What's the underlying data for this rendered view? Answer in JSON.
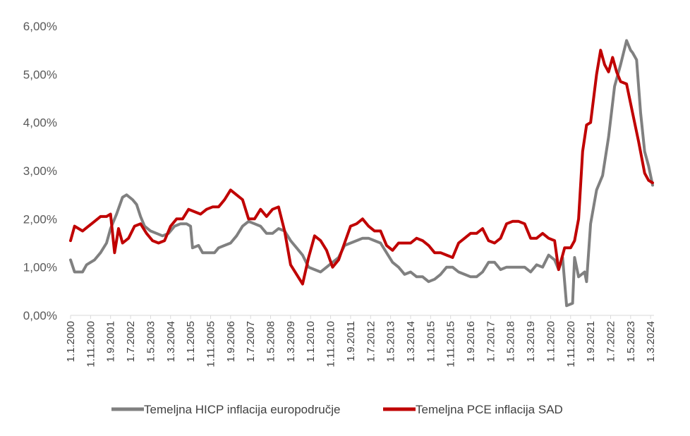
{
  "chart_data": {
    "type": "line",
    "title": "",
    "xlabel": "",
    "ylabel": "",
    "ylim": [
      0,
      0.06
    ],
    "y_ticks": [
      "0,00%",
      "1,00%",
      "2,00%",
      "3,00%",
      "4,00%",
      "5,00%",
      "6,00%"
    ],
    "x_ticks": [
      "1.1.2000",
      "1.11.2000",
      "1.9.2001",
      "1.7.2002",
      "1.5.2003",
      "1.3.2004",
      "1.1.2005",
      "1.11.2005",
      "1.9.2006",
      "1.7.2007",
      "1.5.2008",
      "1.3.2009",
      "1.1.2010",
      "1.11.2010",
      "1.9.2011",
      "1.7.2012",
      "1.5.2013",
      "1.3.2014",
      "1.1.2015",
      "1.11.2015",
      "1.9.2016",
      "1.7.2017",
      "1.5.2018",
      "1.3.2019",
      "1.1.2020",
      "1.11.2020",
      "1.9.2021",
      "1.7.2022",
      "1.5.2023",
      "1.3.2024"
    ],
    "grid": false,
    "legend_position": "bottom",
    "series": [
      {
        "name": "Temeljna HICP inflacija europodručje",
        "color": "#808080",
        "points": [
          [
            "2000-01",
            1.15
          ],
          [
            "2000-03",
            0.9
          ],
          [
            "2000-07",
            0.9
          ],
          [
            "2000-09",
            1.05
          ],
          [
            "2000-11",
            1.1
          ],
          [
            "2001-01",
            1.15
          ],
          [
            "2001-04",
            1.3
          ],
          [
            "2001-07",
            1.5
          ],
          [
            "2001-09",
            1.8
          ],
          [
            "2001-12",
            2.1
          ],
          [
            "2002-03",
            2.45
          ],
          [
            "2002-05",
            2.5
          ],
          [
            "2002-08",
            2.4
          ],
          [
            "2002-10",
            2.3
          ],
          [
            "2002-12",
            2.05
          ],
          [
            "2003-02",
            1.85
          ],
          [
            "2003-05",
            1.75
          ],
          [
            "2003-08",
            1.7
          ],
          [
            "2003-11",
            1.65
          ],
          [
            "2004-02",
            1.7
          ],
          [
            "2004-05",
            1.85
          ],
          [
            "2004-08",
            1.9
          ],
          [
            "2004-11",
            1.9
          ],
          [
            "2005-01",
            1.85
          ],
          [
            "2005-02",
            1.4
          ],
          [
            "2005-05",
            1.45
          ],
          [
            "2005-07",
            1.3
          ],
          [
            "2005-10",
            1.3
          ],
          [
            "2006-01",
            1.3
          ],
          [
            "2006-03",
            1.4
          ],
          [
            "2006-06",
            1.45
          ],
          [
            "2006-09",
            1.5
          ],
          [
            "2006-12",
            1.65
          ],
          [
            "2007-03",
            1.85
          ],
          [
            "2007-06",
            1.95
          ],
          [
            "2007-09",
            1.9
          ],
          [
            "2007-12",
            1.85
          ],
          [
            "2008-03",
            1.7
          ],
          [
            "2008-06",
            1.7
          ],
          [
            "2008-09",
            1.8
          ],
          [
            "2008-12",
            1.75
          ],
          [
            "2009-03",
            1.55
          ],
          [
            "2009-06",
            1.4
          ],
          [
            "2009-09",
            1.25
          ],
          [
            "2009-12",
            1.0
          ],
          [
            "2010-03",
            0.95
          ],
          [
            "2010-06",
            0.9
          ],
          [
            "2010-09",
            1.0
          ],
          [
            "2010-12",
            1.1
          ],
          [
            "2011-03",
            1.2
          ],
          [
            "2011-06",
            1.45
          ],
          [
            "2011-09",
            1.5
          ],
          [
            "2011-12",
            1.55
          ],
          [
            "2012-03",
            1.6
          ],
          [
            "2012-06",
            1.6
          ],
          [
            "2012-09",
            1.55
          ],
          [
            "2012-12",
            1.5
          ],
          [
            "2013-03",
            1.3
          ],
          [
            "2013-06",
            1.1
          ],
          [
            "2013-09",
            1.0
          ],
          [
            "2013-12",
            0.85
          ],
          [
            "2014-03",
            0.9
          ],
          [
            "2014-06",
            0.8
          ],
          [
            "2014-09",
            0.8
          ],
          [
            "2014-12",
            0.7
          ],
          [
            "2015-03",
            0.75
          ],
          [
            "2015-06",
            0.85
          ],
          [
            "2015-09",
            1.0
          ],
          [
            "2015-12",
            1.0
          ],
          [
            "2016-03",
            0.9
          ],
          [
            "2016-06",
            0.85
          ],
          [
            "2016-09",
            0.8
          ],
          [
            "2016-12",
            0.8
          ],
          [
            "2017-03",
            0.9
          ],
          [
            "2017-06",
            1.1
          ],
          [
            "2017-09",
            1.1
          ],
          [
            "2017-12",
            0.95
          ],
          [
            "2018-03",
            1.0
          ],
          [
            "2018-06",
            1.0
          ],
          [
            "2018-09",
            1.0
          ],
          [
            "2018-12",
            1.0
          ],
          [
            "2019-03",
            0.9
          ],
          [
            "2019-06",
            1.05
          ],
          [
            "2019-09",
            1.0
          ],
          [
            "2019-12",
            1.25
          ],
          [
            "2020-03",
            1.15
          ],
          [
            "2020-05",
            0.95
          ],
          [
            "2020-07",
            1.2
          ],
          [
            "2020-09",
            0.2
          ],
          [
            "2020-12",
            0.25
          ],
          [
            "2021-01",
            1.2
          ],
          [
            "2021-03",
            0.8
          ],
          [
            "2021-06",
            0.9
          ],
          [
            "2021-07",
            0.7
          ],
          [
            "2021-09",
            1.9
          ],
          [
            "2021-12",
            2.6
          ],
          [
            "2022-03",
            2.9
          ],
          [
            "2022-06",
            3.7
          ],
          [
            "2022-09",
            4.75
          ],
          [
            "2022-12",
            5.2
          ],
          [
            "2023-03",
            5.7
          ],
          [
            "2023-05",
            5.5
          ],
          [
            "2023-06",
            5.45
          ],
          [
            "2023-08",
            5.3
          ],
          [
            "2023-10",
            4.2
          ],
          [
            "2023-12",
            3.4
          ],
          [
            "2024-02",
            3.1
          ],
          [
            "2024-04",
            2.7
          ]
        ]
      },
      {
        "name": "Temeljna PCE inflacija SAD",
        "color": "#C00000",
        "points": [
          [
            "2000-01",
            1.55
          ],
          [
            "2000-03",
            1.85
          ],
          [
            "2000-07",
            1.75
          ],
          [
            "2000-10",
            1.85
          ],
          [
            "2001-01",
            1.95
          ],
          [
            "2001-04",
            2.05
          ],
          [
            "2001-07",
            2.05
          ],
          [
            "2001-09",
            2.1
          ],
          [
            "2001-11",
            1.3
          ],
          [
            "2002-01",
            1.8
          ],
          [
            "2002-03",
            1.5
          ],
          [
            "2002-06",
            1.6
          ],
          [
            "2002-09",
            1.85
          ],
          [
            "2002-12",
            1.9
          ],
          [
            "2003-03",
            1.7
          ],
          [
            "2003-06",
            1.55
          ],
          [
            "2003-09",
            1.5
          ],
          [
            "2003-12",
            1.55
          ],
          [
            "2004-03",
            1.85
          ],
          [
            "2004-06",
            2.0
          ],
          [
            "2004-09",
            2.0
          ],
          [
            "2004-12",
            2.2
          ],
          [
            "2005-03",
            2.15
          ],
          [
            "2005-06",
            2.1
          ],
          [
            "2005-09",
            2.2
          ],
          [
            "2005-12",
            2.25
          ],
          [
            "2006-03",
            2.25
          ],
          [
            "2006-06",
            2.4
          ],
          [
            "2006-09",
            2.6
          ],
          [
            "2006-12",
            2.5
          ],
          [
            "2007-03",
            2.4
          ],
          [
            "2007-06",
            2.0
          ],
          [
            "2007-09",
            2.0
          ],
          [
            "2007-12",
            2.2
          ],
          [
            "2008-03",
            2.05
          ],
          [
            "2008-06",
            2.2
          ],
          [
            "2008-09",
            2.25
          ],
          [
            "2008-12",
            1.75
          ],
          [
            "2009-03",
            1.05
          ],
          [
            "2009-06",
            0.85
          ],
          [
            "2009-09",
            0.65
          ],
          [
            "2009-12",
            1.2
          ],
          [
            "2010-03",
            1.65
          ],
          [
            "2010-06",
            1.55
          ],
          [
            "2010-09",
            1.35
          ],
          [
            "2010-12",
            1.0
          ],
          [
            "2011-03",
            1.15
          ],
          [
            "2011-06",
            1.5
          ],
          [
            "2011-09",
            1.85
          ],
          [
            "2011-12",
            1.9
          ],
          [
            "2012-03",
            2.0
          ],
          [
            "2012-06",
            1.85
          ],
          [
            "2012-09",
            1.75
          ],
          [
            "2012-12",
            1.75
          ],
          [
            "2013-03",
            1.45
          ],
          [
            "2013-06",
            1.35
          ],
          [
            "2013-09",
            1.5
          ],
          [
            "2013-12",
            1.5
          ],
          [
            "2014-03",
            1.5
          ],
          [
            "2014-06",
            1.6
          ],
          [
            "2014-09",
            1.55
          ],
          [
            "2014-12",
            1.45
          ],
          [
            "2015-03",
            1.3
          ],
          [
            "2015-06",
            1.3
          ],
          [
            "2015-09",
            1.25
          ],
          [
            "2015-12",
            1.2
          ],
          [
            "2016-03",
            1.5
          ],
          [
            "2016-06",
            1.6
          ],
          [
            "2016-09",
            1.7
          ],
          [
            "2016-12",
            1.7
          ],
          [
            "2017-03",
            1.8
          ],
          [
            "2017-06",
            1.55
          ],
          [
            "2017-09",
            1.5
          ],
          [
            "2017-12",
            1.6
          ],
          [
            "2018-03",
            1.9
          ],
          [
            "2018-06",
            1.95
          ],
          [
            "2018-09",
            1.95
          ],
          [
            "2018-12",
            1.9
          ],
          [
            "2019-03",
            1.6
          ],
          [
            "2019-06",
            1.6
          ],
          [
            "2019-09",
            1.7
          ],
          [
            "2019-12",
            1.6
          ],
          [
            "2020-03",
            1.55
          ],
          [
            "2020-05",
            0.95
          ],
          [
            "2020-08",
            1.4
          ],
          [
            "2020-11",
            1.4
          ],
          [
            "2021-01",
            1.55
          ],
          [
            "2021-03",
            2.0
          ],
          [
            "2021-05",
            3.4
          ],
          [
            "2021-07",
            3.95
          ],
          [
            "2021-09",
            4.0
          ],
          [
            "2021-12",
            5.0
          ],
          [
            "2022-02",
            5.5
          ],
          [
            "2022-04",
            5.2
          ],
          [
            "2022-06",
            5.05
          ],
          [
            "2022-08",
            5.35
          ],
          [
            "2022-10",
            5.05
          ],
          [
            "2022-12",
            4.85
          ],
          [
            "2023-03",
            4.8
          ],
          [
            "2023-06",
            4.2
          ],
          [
            "2023-09",
            3.6
          ],
          [
            "2023-12",
            2.95
          ],
          [
            "2024-02",
            2.8
          ],
          [
            "2024-04",
            2.75
          ]
        ]
      }
    ]
  }
}
